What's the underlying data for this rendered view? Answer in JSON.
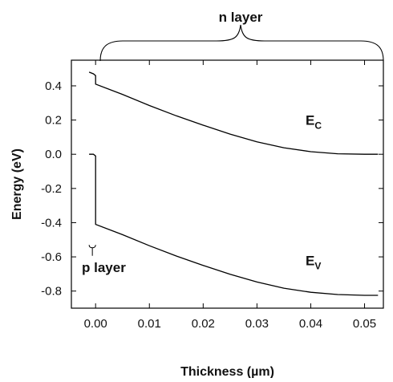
{
  "chart_data": {
    "type": "line",
    "xlabel": "Thickness (µm)",
    "ylabel": "Energy (eV)",
    "xlim": [
      -0.0045,
      0.0535
    ],
    "ylim": [
      -0.9,
      0.55
    ],
    "xticks": [
      "0.00",
      "0.01",
      "0.02",
      "0.03",
      "0.04",
      "0.05"
    ],
    "xtick_values": [
      0,
      0.01,
      0.02,
      0.03,
      0.04,
      0.05
    ],
    "yticks": [
      "0.4",
      "0.2",
      "0.0",
      "-0.2",
      "-0.4",
      "-0.6",
      "-0.8"
    ],
    "ytick_values": [
      0.4,
      0.2,
      0.0,
      -0.2,
      -0.4,
      -0.6,
      -0.8
    ],
    "grid": false,
    "series": [
      {
        "name": "EC",
        "x": [
          -0.0012,
          -0.0004,
          0.0,
          0.0,
          0.005,
          0.01,
          0.015,
          0.02,
          0.025,
          0.03,
          0.035,
          0.04,
          0.045,
          0.05,
          0.0525
        ],
        "y": [
          0.48,
          0.47,
          0.46,
          0.41,
          0.35,
          0.285,
          0.225,
          0.17,
          0.118,
          0.073,
          0.038,
          0.015,
          0.003,
          0.0,
          0.0
        ]
      },
      {
        "name": "EV",
        "x": [
          -0.0012,
          -0.0004,
          0.0,
          0.0,
          0.005,
          0.01,
          0.015,
          0.02,
          0.025,
          0.03,
          0.035,
          0.04,
          0.045,
          0.05,
          0.0525
        ],
        "y": [
          0.0,
          0.0,
          -0.01,
          -0.41,
          -0.47,
          -0.535,
          -0.595,
          -0.65,
          -0.702,
          -0.747,
          -0.783,
          -0.807,
          -0.82,
          -0.825,
          -0.825
        ]
      }
    ],
    "annotations": {
      "n_layer": "n layer",
      "p_layer": "p layer",
      "ec_main": "E",
      "ec_sub": "C",
      "ev_main": "E",
      "ev_sub": "V"
    }
  }
}
